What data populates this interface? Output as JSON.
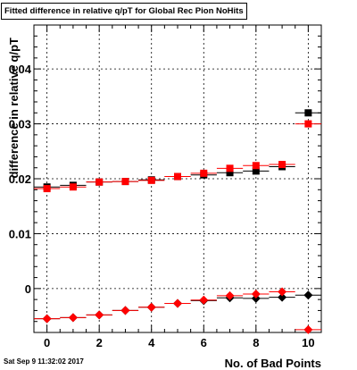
{
  "chart_data": {
    "type": "scatter",
    "title": "Fitted difference in relative q/pT for Global Rec Pion NoHits",
    "xlabel": "No. of Bad Points",
    "ylabel": "difference in relative q/pT",
    "xlim": [
      -0.5,
      10.5
    ],
    "ylim": [
      -0.008,
      0.048
    ],
    "xticks": [
      0,
      2,
      4,
      6,
      8,
      10
    ],
    "xtick_labels": [
      "0",
      "2",
      "4",
      "6",
      "8",
      "10"
    ],
    "yticks": [
      0,
      0.01,
      0.02,
      0.03,
      0.04
    ],
    "ytick_labels": [
      "0",
      "0.01",
      "0.02",
      "0.03",
      "0.04"
    ],
    "grid": true,
    "legend": "none",
    "series": [
      {
        "marker": "square",
        "color": "#000000",
        "x": [
          0,
          1,
          2,
          3,
          4,
          5,
          6,
          7,
          8,
          9,
          10
        ],
        "y": [
          0.0185,
          0.0188,
          0.0194,
          0.0195,
          0.0198,
          0.0204,
          0.0207,
          0.0211,
          0.0214,
          0.0222,
          0.032
        ]
      },
      {
        "marker": "square",
        "color": "#ff0000",
        "x": [
          0,
          1,
          2,
          3,
          4,
          5,
          6,
          7,
          8,
          9,
          10
        ],
        "y": [
          0.0182,
          0.0185,
          0.0194,
          0.0195,
          0.0197,
          0.0204,
          0.021,
          0.0219,
          0.0224,
          0.0226,
          0.03
        ]
      },
      {
        "marker": "diamond",
        "color": "#000000",
        "x": [
          0,
          1,
          2,
          3,
          4,
          5,
          6,
          7,
          8,
          9,
          10
        ],
        "y": [
          -0.0055,
          -0.0053,
          -0.0048,
          -0.004,
          -0.0034,
          -0.0027,
          -0.0022,
          -0.0017,
          -0.0018,
          -0.0016,
          -0.0012
        ]
      },
      {
        "marker": "diamond",
        "color": "#ff0000",
        "x": [
          0,
          1,
          2,
          3,
          4,
          5,
          6,
          7,
          8,
          9,
          10
        ],
        "y": [
          -0.0055,
          -0.0053,
          -0.0048,
          -0.004,
          -0.0034,
          -0.0027,
          -0.0021,
          -0.0013,
          -0.001,
          -0.0006,
          -0.0075
        ]
      }
    ]
  },
  "footer": {
    "timestamp": "Sat Sep  9 11:32:02 2017"
  }
}
